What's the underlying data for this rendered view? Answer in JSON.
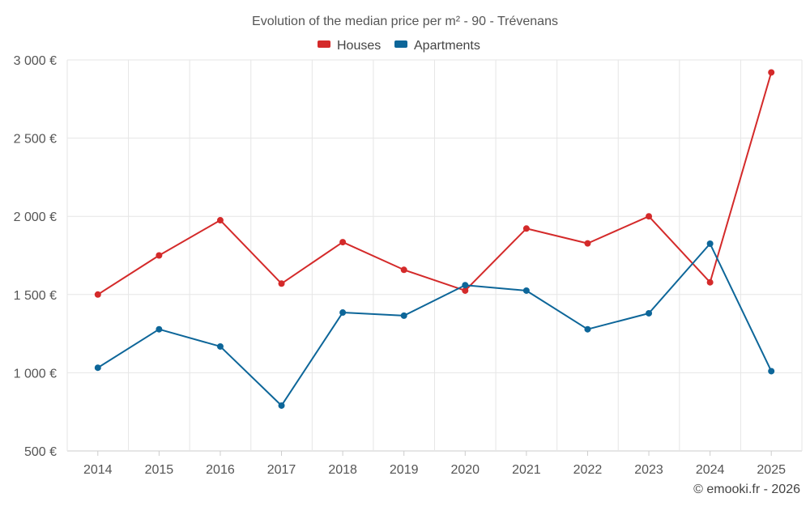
{
  "chart_data": {
    "type": "line",
    "title": "Evolution of the median price per m² - 90 - Trévenans",
    "categories": [
      "2014",
      "2015",
      "2016",
      "2017",
      "2018",
      "2019",
      "2020",
      "2021",
      "2022",
      "2023",
      "2024",
      "2025"
    ],
    "series": [
      {
        "name": "Houses",
        "color": "#d42a2a",
        "values": [
          1500,
          1750,
          1975,
          1570,
          1835,
          1658,
          1525,
          1922,
          1827,
          2000,
          1578,
          2920
        ]
      },
      {
        "name": "Apartments",
        "color": "#0d6699",
        "values": [
          1032,
          1278,
          1168,
          790,
          1385,
          1365,
          1560,
          1525,
          1278,
          1380,
          1825,
          1010
        ]
      }
    ],
    "ylim": [
      500,
      3000
    ],
    "yticks": [
      500,
      1000,
      1500,
      2000,
      2500,
      3000
    ],
    "ytick_labels": [
      "500 €",
      "1 000 €",
      "1 500 €",
      "2 000 €",
      "2 500 €",
      "3 000 €"
    ],
    "xlabel": "",
    "ylabel": "",
    "legend_position": "top-center",
    "grid": true
  },
  "credit": "© emooki.fr - 2026"
}
